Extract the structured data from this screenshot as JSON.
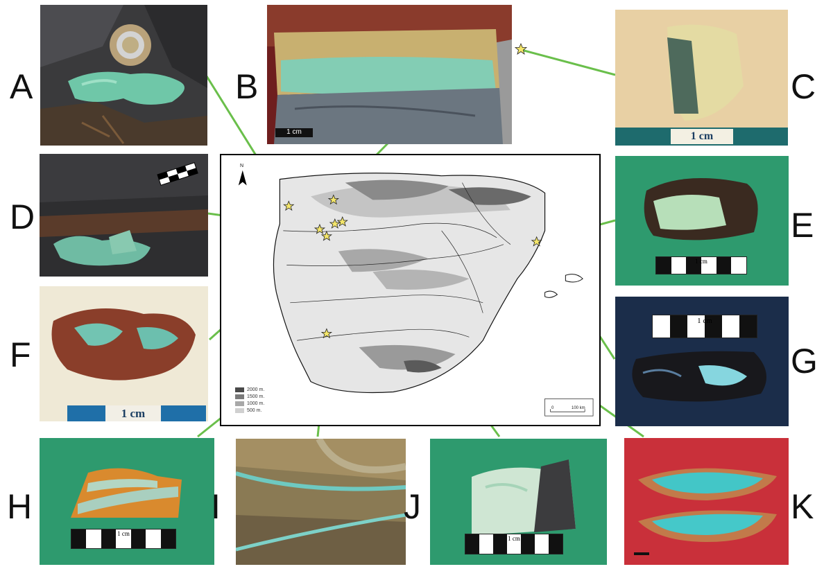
{
  "panels": {
    "A": {
      "letter": "A"
    },
    "B": {
      "letter": "B",
      "scale": "1 cm"
    },
    "C": {
      "letter": "C",
      "scale": "1 cm"
    },
    "D": {
      "letter": "D"
    },
    "E": {
      "letter": "E",
      "scale": "1 cm"
    },
    "F": {
      "letter": "F",
      "scale": "1 cm"
    },
    "G": {
      "letter": "G",
      "scale": "1 cm"
    },
    "H": {
      "letter": "H",
      "scale": "1 cm"
    },
    "I": {
      "letter": "I"
    },
    "J": {
      "letter": "J",
      "scale": "1 cm"
    },
    "K": {
      "letter": "K"
    }
  },
  "map": {
    "north_label": "N",
    "legend": [
      {
        "label": "2000 m.",
        "color": "#4a4a4a"
      },
      {
        "label": "1500 m.",
        "color": "#7a7a7a"
      },
      {
        "label": "1000 m.",
        "color": "#a8a8a8"
      },
      {
        "label": "500 m.",
        "color": "#d0d0d0"
      }
    ],
    "scale": {
      "start": "0",
      "end": "100 km"
    }
  },
  "colors": {
    "connector": "#6abf4b",
    "star_fill": "#f4e66a",
    "variscite": "#7fd3b8"
  }
}
